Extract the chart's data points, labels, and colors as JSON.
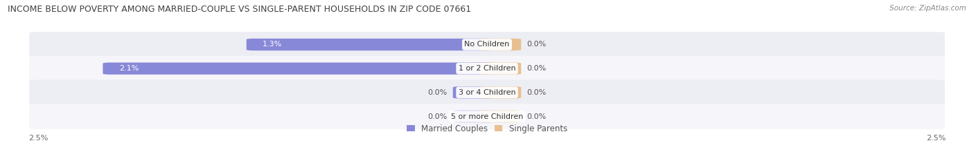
{
  "title": "INCOME BELOW POVERTY AMONG MARRIED-COUPLE VS SINGLE-PARENT HOUSEHOLDS IN ZIP CODE 07661",
  "source": "Source: ZipAtlas.com",
  "categories": [
    "No Children",
    "1 or 2 Children",
    "3 or 4 Children",
    "5 or more Children"
  ],
  "married_values": [
    1.3,
    2.1,
    0.0,
    0.0
  ],
  "single_values": [
    0.0,
    0.0,
    0.0,
    0.0
  ],
  "xlim": 2.5,
  "married_color": "#8888d8",
  "single_color": "#e8c090",
  "row_bg_even": "#ededf4",
  "row_bg_odd": "#f5f5fa",
  "title_fontsize": 9.0,
  "source_fontsize": 7.5,
  "value_fontsize": 8.0,
  "category_fontsize": 8.0,
  "legend_fontsize": 8.5,
  "axis_label_fontsize": 8.0,
  "bar_height": 0.42,
  "stub_size": 0.15,
  "background_color": "#ffffff"
}
